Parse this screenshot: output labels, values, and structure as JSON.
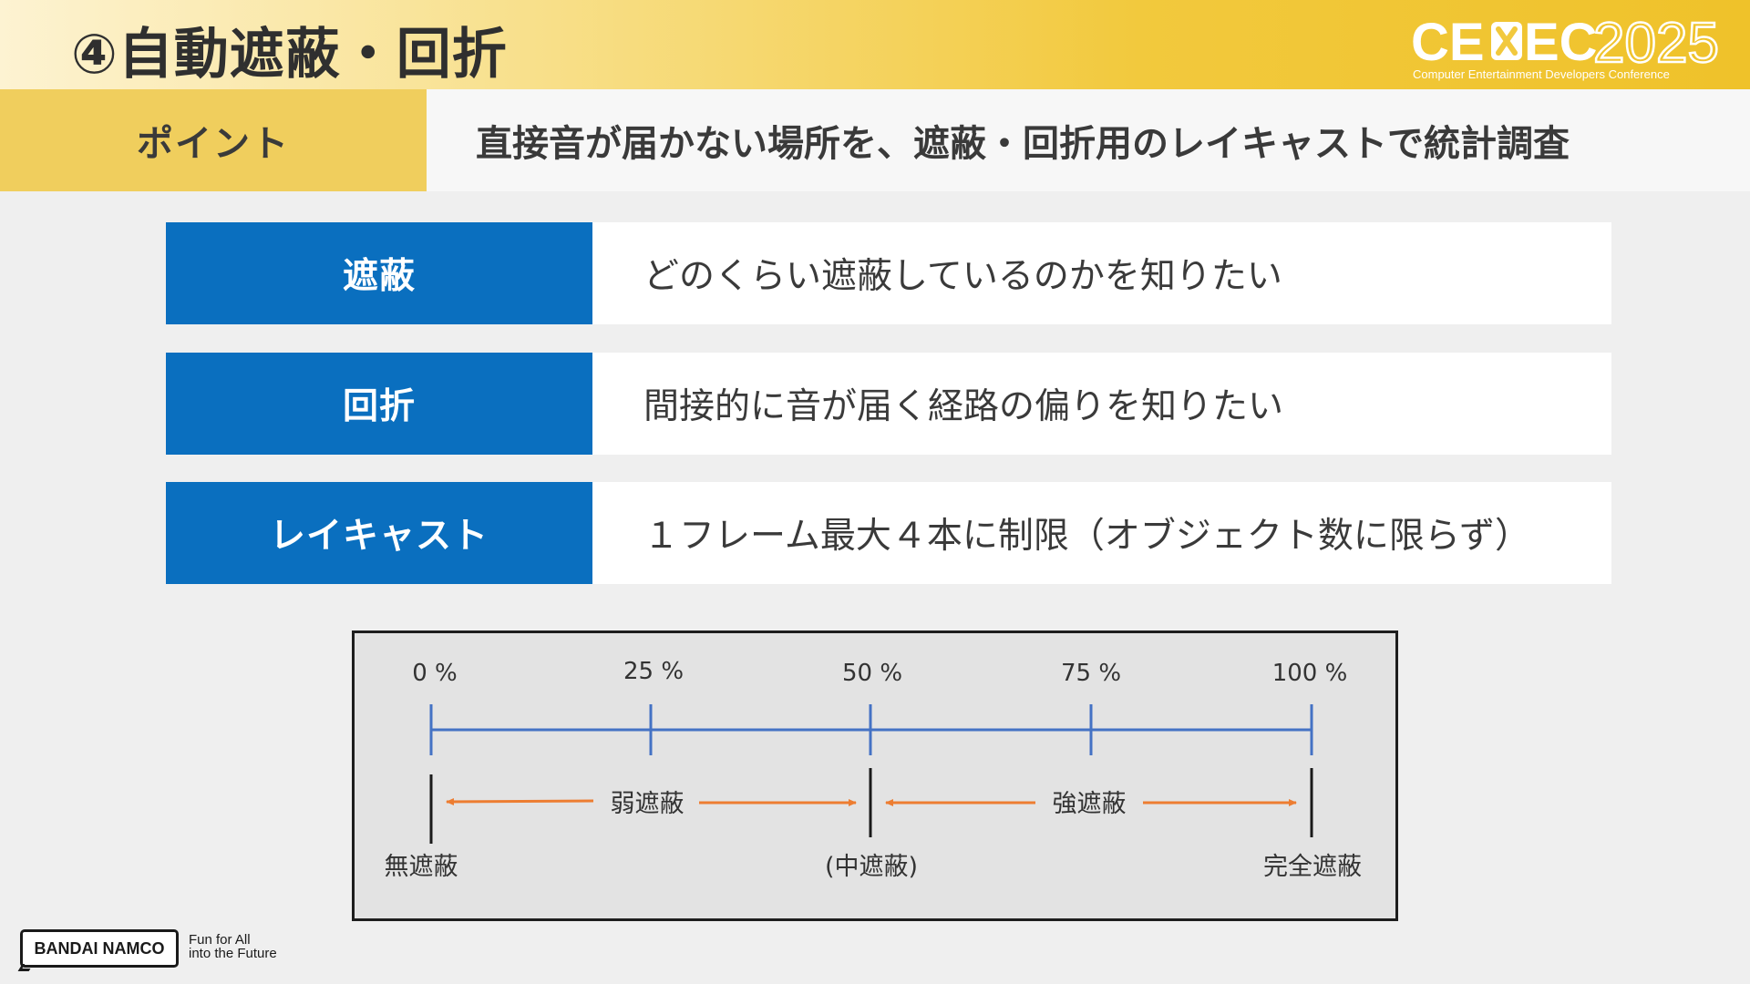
{
  "header": {
    "title": "④自動遮蔽・回折",
    "brand": {
      "name": "CEDEC2025",
      "mark_left": "CE",
      "mark_right": "EC",
      "year": "2025",
      "subtitle": "Computer Entertainment Developers Conference"
    }
  },
  "point": {
    "label": "ポイント",
    "text": "直接音が届かない場所を、遮蔽・回折用のレイキャストで統計調査"
  },
  "rows": [
    {
      "label": "遮蔽",
      "text": "どのくらい遮蔽しているのかを知りたい"
    },
    {
      "label": "回折",
      "text": "間接的に音が届く経路の偏りを知りたい"
    },
    {
      "label": "レイキャスト",
      "text": "１フレーム最大４本に制限（オブジェクト数に限らず）"
    }
  ],
  "diagram": {
    "ticks": [
      "0 %",
      "25 %",
      "50 %",
      "75 %",
      "100 %"
    ],
    "range_labels": [
      "弱遮蔽",
      "強遮蔽"
    ],
    "endpoint_labels": [
      "無遮蔽",
      "(中遮蔽)",
      "完全遮蔽"
    ],
    "colors": {
      "scale": "#4472c4",
      "arrow": "#ed7d31",
      "marker": "#1a1a1a"
    }
  },
  "footer": {
    "company": "BANDAI NAMCO",
    "slogan_line1": "Fun for All",
    "slogan_line2": "into the Future"
  }
}
